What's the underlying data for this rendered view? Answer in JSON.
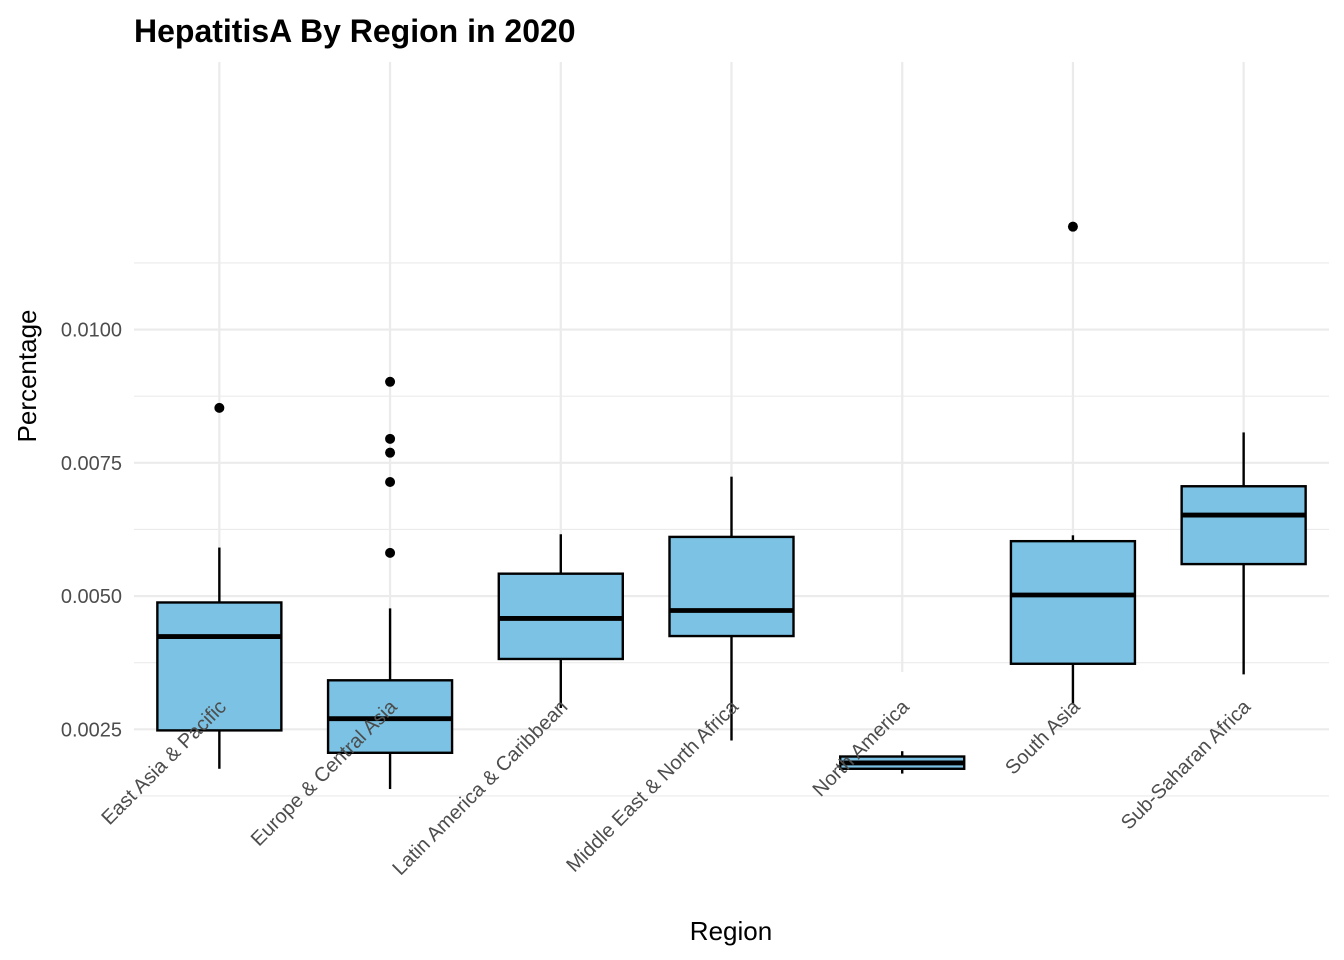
{
  "chart_data": {
    "type": "boxplot",
    "title": "HepatitisA By Region in 2020",
    "xlabel": "Region",
    "ylabel": "Percentage",
    "ylim": [
      0.0009,
      0.0125
    ],
    "yticks": [
      {
        "value": 0.0025,
        "label": "0.0025"
      },
      {
        "value": 0.005,
        "label": "0.0050"
      },
      {
        "value": 0.0075,
        "label": "0.0075"
      },
      {
        "value": 0.01,
        "label": "0.0100"
      }
    ],
    "minor_yticks": [
      0.00125,
      0.00375,
      0.00625,
      0.00875,
      0.01125
    ],
    "grid": true,
    "box_fill": "#7bc2e4",
    "box_stroke": "#000000",
    "categories": [
      "East Asia & Pacific",
      "Europe & Central Asia",
      "Latin America & Caribbean",
      "Middle East & North Africa",
      "North America",
      "South Asia",
      "Sub-Saharan Africa"
    ],
    "boxes": [
      {
        "min": 0.00176,
        "q1": 0.00248,
        "median": 0.00424,
        "q3": 0.00488,
        "max": 0.00591,
        "outliers": [
          0.00853
        ]
      },
      {
        "min": 0.00138,
        "q1": 0.00206,
        "median": 0.0027,
        "q3": 0.00342,
        "max": 0.00477,
        "outliers": [
          0.00581,
          0.00714,
          0.00769,
          0.00795,
          0.00902
        ]
      },
      {
        "min": 0.0029,
        "q1": 0.00382,
        "median": 0.00458,
        "q3": 0.00542,
        "max": 0.00616,
        "outliers": []
      },
      {
        "min": 0.00229,
        "q1": 0.00425,
        "median": 0.00473,
        "q3": 0.00611,
        "max": 0.00724,
        "outliers": []
      },
      {
        "min": 0.00167,
        "q1": 0.00176,
        "median": 0.00187,
        "q3": 0.00199,
        "max": 0.00209,
        "outliers": []
      },
      {
        "min": 0.00298,
        "q1": 0.00373,
        "median": 0.00502,
        "q3": 0.00603,
        "max": 0.00614,
        "outliers": [
          0.01193
        ]
      },
      {
        "min": 0.00353,
        "q1": 0.0056,
        "median": 0.00652,
        "q3": 0.00706,
        "max": 0.00807,
        "outliers": []
      }
    ]
  }
}
